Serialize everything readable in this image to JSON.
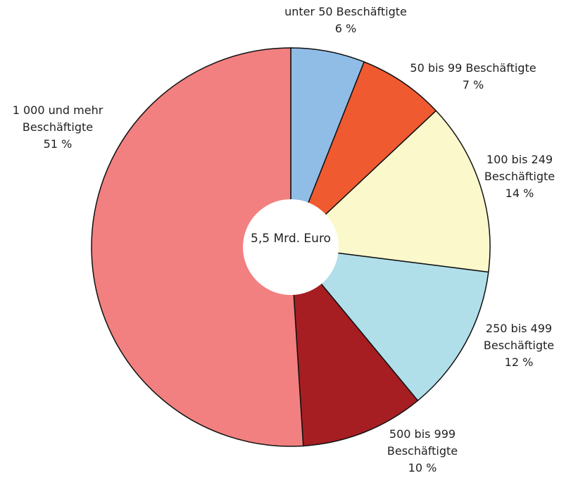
{
  "chart_data": {
    "type": "pie",
    "center_label": "5,5 Mrd. Euro",
    "categories": [
      "unter 50 Beschäftigte",
      "50 bis 99 Beschäftigte",
      "100 bis 249 Beschäftigte",
      "250 bis 499 Beschäftigte",
      "500 bis 999 Beschäftigte",
      "1 000 und mehr Beschäftigte"
    ],
    "values": [
      6,
      7,
      14,
      12,
      10,
      51
    ],
    "value_labels": [
      "6 %",
      "7 %",
      "14 %",
      "12 %",
      "10 %",
      "51 %"
    ],
    "colors": [
      "#8fbde6",
      "#f05a30",
      "#fbf8cc",
      "#b0dfea",
      "#a61e22",
      "#f28080"
    ]
  }
}
